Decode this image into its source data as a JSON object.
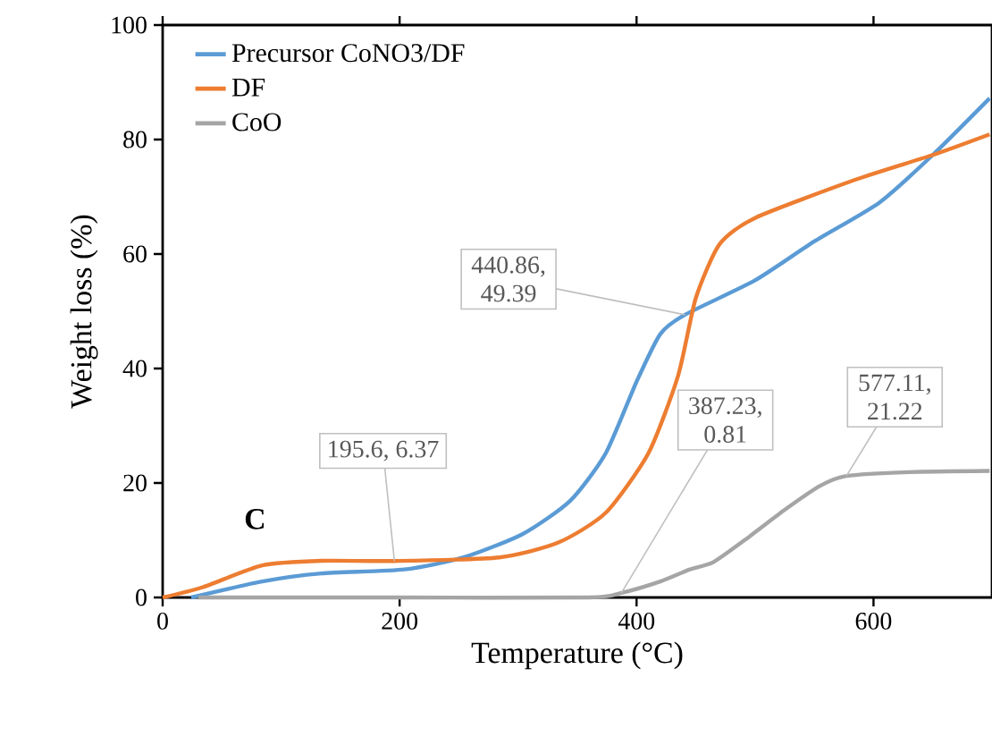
{
  "chart_data": {
    "type": "line",
    "xlabel": "Temperature (°C)",
    "ylabel": "Weight loss (%)",
    "xlim": [
      0,
      700
    ],
    "ylim": [
      0,
      100
    ],
    "xticks": [
      0,
      200,
      400,
      600
    ],
    "yticks": [
      0,
      20,
      40,
      60,
      80,
      100
    ],
    "legend": "top left",
    "series": [
      {
        "name": "Precursor CoNO3/DF",
        "color": "#5b9bd5",
        "x": [
          24,
          84,
          134,
          204,
          254,
          304,
          344,
          374,
          400,
          420,
          440.86,
          500,
          550,
          605,
          650,
          698
        ],
        "values": [
          0,
          2.8,
          4.2,
          4.9,
          7.0,
          11.1,
          16.9,
          25.2,
          37.7,
          46,
          49.39,
          55.4,
          62.2,
          69,
          77.3,
          87.2
        ]
      },
      {
        "name": "DF",
        "color": "#ed7d31",
        "x": [
          0,
          34,
          84,
          134,
          195.6,
          284,
          334,
          374,
          410,
          435,
          450,
          470,
          500,
          585,
          650,
          698
        ],
        "values": [
          0,
          1.8,
          5.6,
          6.4,
          6.37,
          7.0,
          9.6,
          14.8,
          25.2,
          38.7,
          52.3,
          61.7,
          66.3,
          73,
          77.3,
          80.9
        ]
      },
      {
        "name": "CoO",
        "color": "#a5a5a5",
        "x": [
          30,
          200,
          360,
          387.23,
          420,
          445,
          465,
          495,
          525,
          555,
          577.11,
          630,
          698
        ],
        "values": [
          0,
          0,
          0,
          0.81,
          2.8,
          4.9,
          6.2,
          10.6,
          15.3,
          19.5,
          21.22,
          21.9,
          22.1
        ]
      }
    ],
    "annotations": [
      {
        "text": "440.86, 49.39",
        "x": 440.86,
        "y": 49.39
      },
      {
        "text": "195.6, 6.37",
        "x": 195.6,
        "y": 6.37
      },
      {
        "text": "387.23, 0.81",
        "x": 387.23,
        "y": 0.81
      },
      {
        "text": "577.11, 21.22",
        "x": 577.11,
        "y": 21.22
      },
      "C"
    ]
  }
}
